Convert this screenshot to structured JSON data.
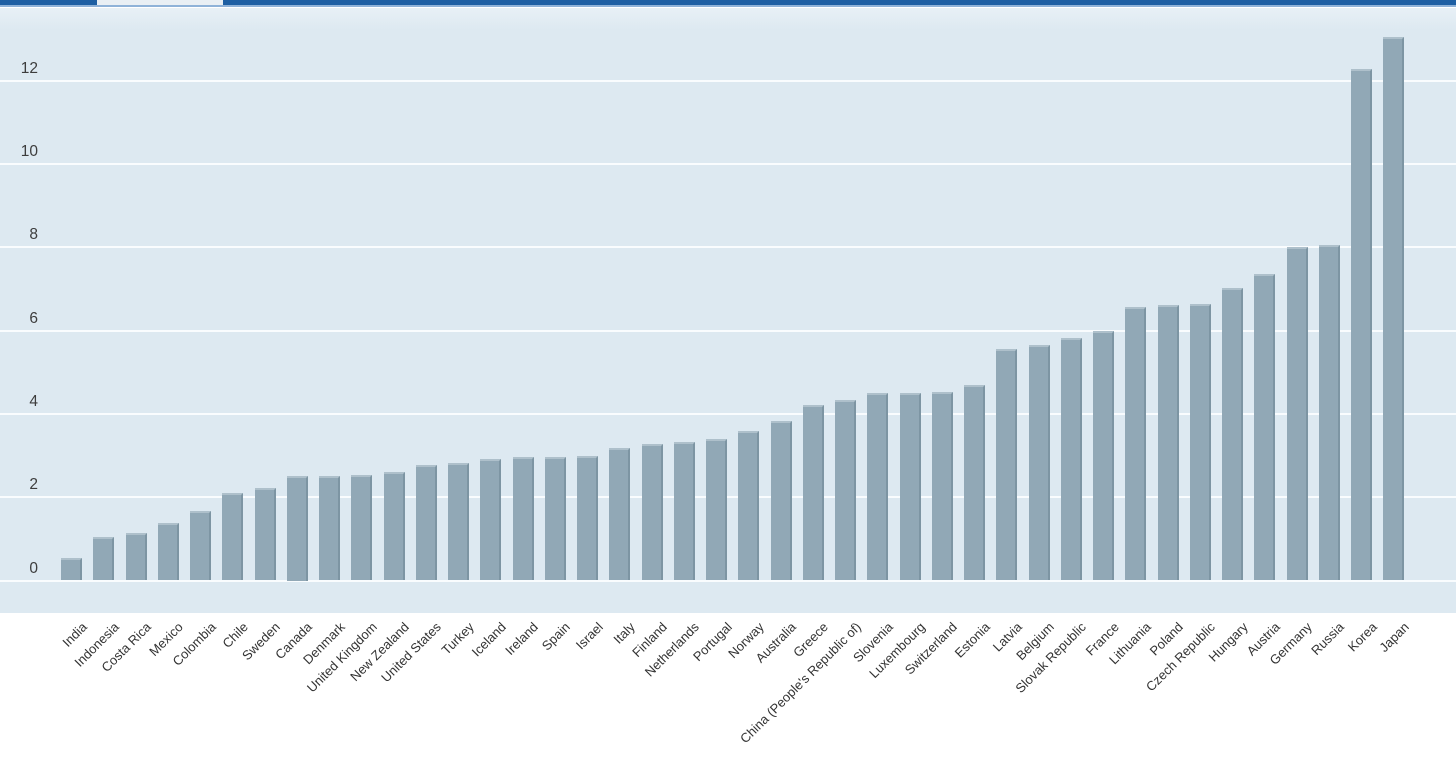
{
  "tab_bar": {
    "accent_color": "#1e5fa3",
    "underline_color": "#8fb2d8",
    "active_tab_color": "#e9eff4"
  },
  "chart_data": {
    "type": "bar",
    "title": "",
    "xlabel": "",
    "ylabel": "",
    "legend": "none",
    "grid": true,
    "orientation": "vertical",
    "background_color": "#dde9f1",
    "gridline_color": "#f9fcfe",
    "bar_color": "#91a8b6",
    "ylim": [
      0,
      13.7
    ],
    "yticks": [
      0,
      2,
      4,
      6,
      8,
      10,
      12
    ],
    "yticklabels": [
      "0",
      "2",
      "4",
      "6",
      "8",
      "10",
      "12"
    ],
    "categories": [
      "India",
      "Indonesia",
      "Costa Rica",
      "Mexico",
      "Colombia",
      "Chile",
      "Sweden",
      "Canada",
      "Denmark",
      "United Kingdom",
      "New Zealand",
      "United States",
      "Turkey",
      "Iceland",
      "Ireland",
      "Spain",
      "Israel",
      "Italy",
      "Finland",
      "Netherlands",
      "Portugal",
      "Norway",
      "Australia",
      "Greece",
      "China (People's Republic of)",
      "Slovenia",
      "Luxembourg",
      "Switzerland",
      "Estonia",
      "Latvia",
      "Belgium",
      "Slovak Republic",
      "France",
      "Lithuania",
      "Poland",
      "Czech Republic",
      "Hungary",
      "Austria",
      "Germany",
      "Russia",
      "Korea",
      "Japan"
    ],
    "values": [
      0.53,
      1.04,
      1.13,
      1.38,
      1.68,
      2.11,
      2.22,
      2.5,
      2.52,
      2.54,
      2.61,
      2.77,
      2.81,
      2.91,
      2.96,
      2.97,
      2.99,
      3.18,
      3.28,
      3.32,
      3.39,
      3.6,
      3.84,
      4.21,
      4.34,
      4.5,
      4.51,
      4.53,
      4.69,
      5.57,
      5.66,
      5.82,
      5.98,
      6.56,
      6.62,
      6.63,
      7.02,
      7.37,
      8.0,
      8.05,
      12.27,
      13.05
    ]
  }
}
